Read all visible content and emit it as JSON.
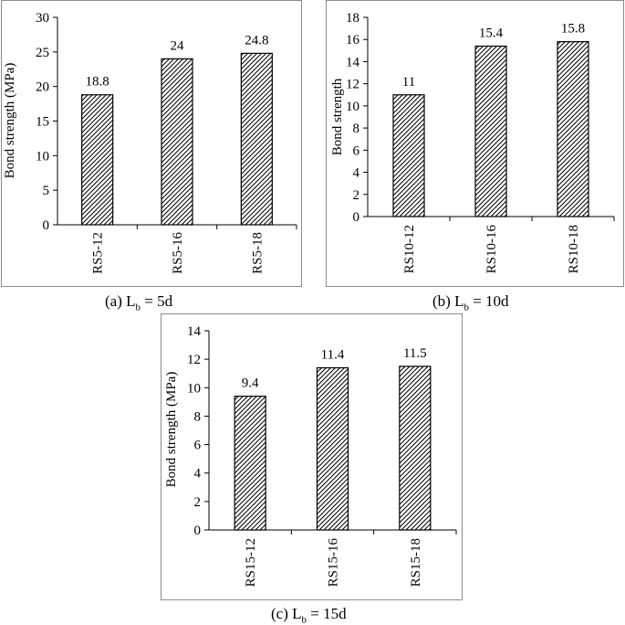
{
  "chart_data": [
    {
      "type": "bar",
      "categories": [
        "RS5-12",
        "RS5-16",
        "RS5-18"
      ],
      "values": [
        18.8,
        24,
        24.8
      ],
      "data_labels": [
        "18.8",
        "24",
        "24.8"
      ],
      "ylabel": "Bond strength (MPa)",
      "ylim": [
        0,
        30
      ],
      "yticks": [
        "0",
        "5",
        "10",
        "15",
        "20",
        "25",
        "30"
      ],
      "grid": false,
      "caption": {
        "prefix": "(a) L",
        "sub": "b",
        "suffix": " = 5d"
      }
    },
    {
      "type": "bar",
      "categories": [
        "RS10-12",
        "RS10-16",
        "RS10-18"
      ],
      "values": [
        11,
        15.4,
        15.8
      ],
      "data_labels": [
        "11",
        "15.4",
        "15.8"
      ],
      "ylabel": "Bond strength",
      "ylim": [
        0,
        18
      ],
      "yticks": [
        "0",
        "2",
        "4",
        "6",
        "8",
        "10",
        "12",
        "14",
        "16",
        "18"
      ],
      "grid": false,
      "caption": {
        "prefix": "(b) L",
        "sub": "b",
        "suffix": " = 10d"
      }
    },
    {
      "type": "bar",
      "categories": [
        "RS15-12",
        "RS15-16",
        "RS15-18"
      ],
      "values": [
        9.4,
        11.4,
        11.5
      ],
      "data_labels": [
        "9.4",
        "11.4",
        "11.5"
      ],
      "ylabel": "Bond strength (MPa)",
      "ylim": [
        0,
        14
      ],
      "yticks": [
        "0",
        "2",
        "4",
        "6",
        "8",
        "10",
        "12",
        "14"
      ],
      "grid": false,
      "caption": {
        "prefix": "(c) L",
        "sub": "b",
        "suffix": " = 15d"
      }
    }
  ],
  "colors": {
    "bar_fill_pattern": "diagonal-hatch",
    "bar_stroke": "#000000",
    "frame": "#8c8c8c"
  }
}
